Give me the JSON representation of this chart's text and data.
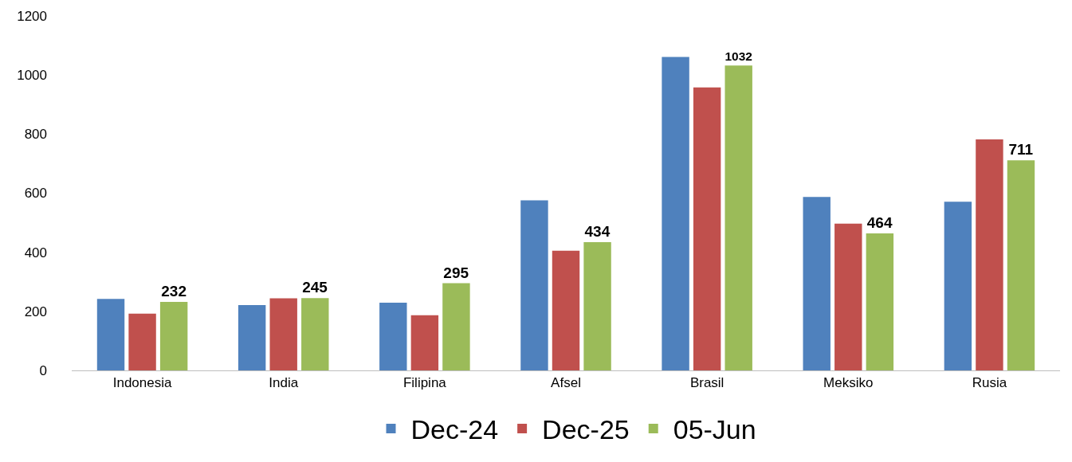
{
  "chart_data": {
    "type": "bar",
    "categories": [
      "Indonesia",
      "India",
      "Filipina",
      "Afsel",
      "Brasil",
      "Meksiko",
      "Rusia"
    ],
    "series": [
      {
        "name": "Dec-24",
        "color": "#4f81bd",
        "values": [
          242,
          221,
          229,
          576,
          1061,
          587,
          571
        ]
      },
      {
        "name": "Dec-25",
        "color": "#c0504d",
        "values": [
          192,
          244,
          187,
          405,
          958,
          497,
          782
        ]
      },
      {
        "name": "05-Jun",
        "color": "#9bbb59",
        "values": [
          232,
          245,
          295,
          434,
          1032,
          464,
          711
        ],
        "value_labels": [
          "232",
          "245",
          "295",
          "434",
          "1032",
          "464",
          "711"
        ]
      }
    ],
    "ylim": [
      0,
      1200
    ],
    "yticks": [
      0,
      200,
      400,
      600,
      800,
      1000,
      1200
    ],
    "grid": false,
    "legend": "bottom"
  }
}
